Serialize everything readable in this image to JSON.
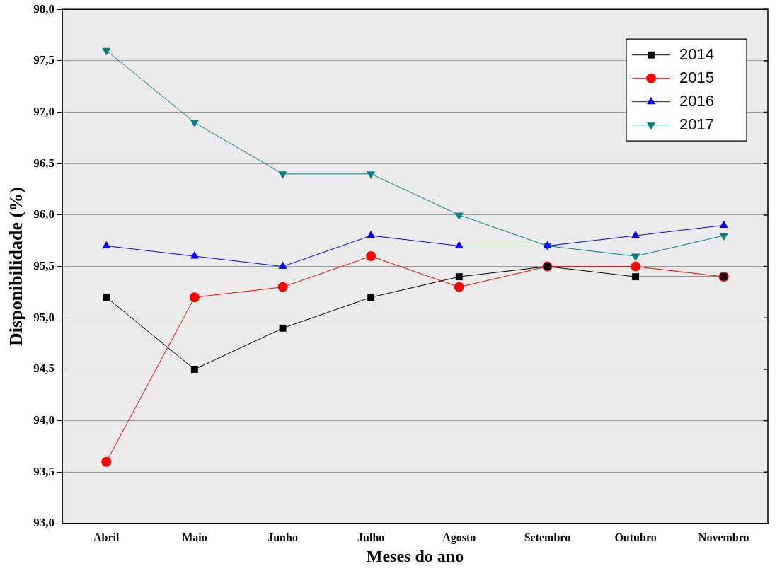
{
  "chart_data": {
    "type": "line",
    "xlabel": "Meses do ano",
    "ylabel": "Disponibilidade (%)",
    "categories": [
      "Abril",
      "Maio",
      "Junho",
      "Julho",
      "Agosto",
      "Setembro",
      "Outubro",
      "Novembro"
    ],
    "series": [
      {
        "name": "2014",
        "color": "#000000",
        "marker": "square",
        "values": [
          95.2,
          94.5,
          94.9,
          95.2,
          95.4,
          95.5,
          95.4,
          95.4
        ]
      },
      {
        "name": "2015",
        "color": "#ff0000",
        "marker": "circle",
        "values": [
          93.6,
          95.2,
          95.3,
          95.6,
          95.3,
          95.5,
          95.5,
          95.4
        ]
      },
      {
        "name": "2016",
        "color": "#0000ff",
        "marker": "triangle",
        "values": [
          95.7,
          95.6,
          95.5,
          95.8,
          95.7,
          95.7,
          95.8,
          95.9
        ]
      },
      {
        "name": "2017",
        "color": "#008080",
        "marker": "triangle-down",
        "values": [
          97.6,
          96.9,
          96.4,
          96.4,
          96.0,
          95.7,
          95.6,
          95.8
        ]
      }
    ],
    "ylim": [
      93,
      98
    ],
    "yticks": [
      {
        "value": 93,
        "label": "93,0"
      },
      {
        "value": 93.5,
        "label": "93,5"
      },
      {
        "value": 94,
        "label": "94,0"
      },
      {
        "value": 94.5,
        "label": "94,5"
      },
      {
        "value": 95,
        "label": "95,0"
      },
      {
        "value": 95.5,
        "label": "95,5"
      },
      {
        "value": 96,
        "label": "96,0"
      },
      {
        "value": 96.5,
        "label": "96,5"
      },
      {
        "value": 97,
        "label": "97,0"
      },
      {
        "value": 97.5,
        "label": "97,5"
      },
      {
        "value": 98,
        "label": "98,0"
      }
    ],
    "grid": "y",
    "legend": "top right",
    "line_style": "solid"
  }
}
